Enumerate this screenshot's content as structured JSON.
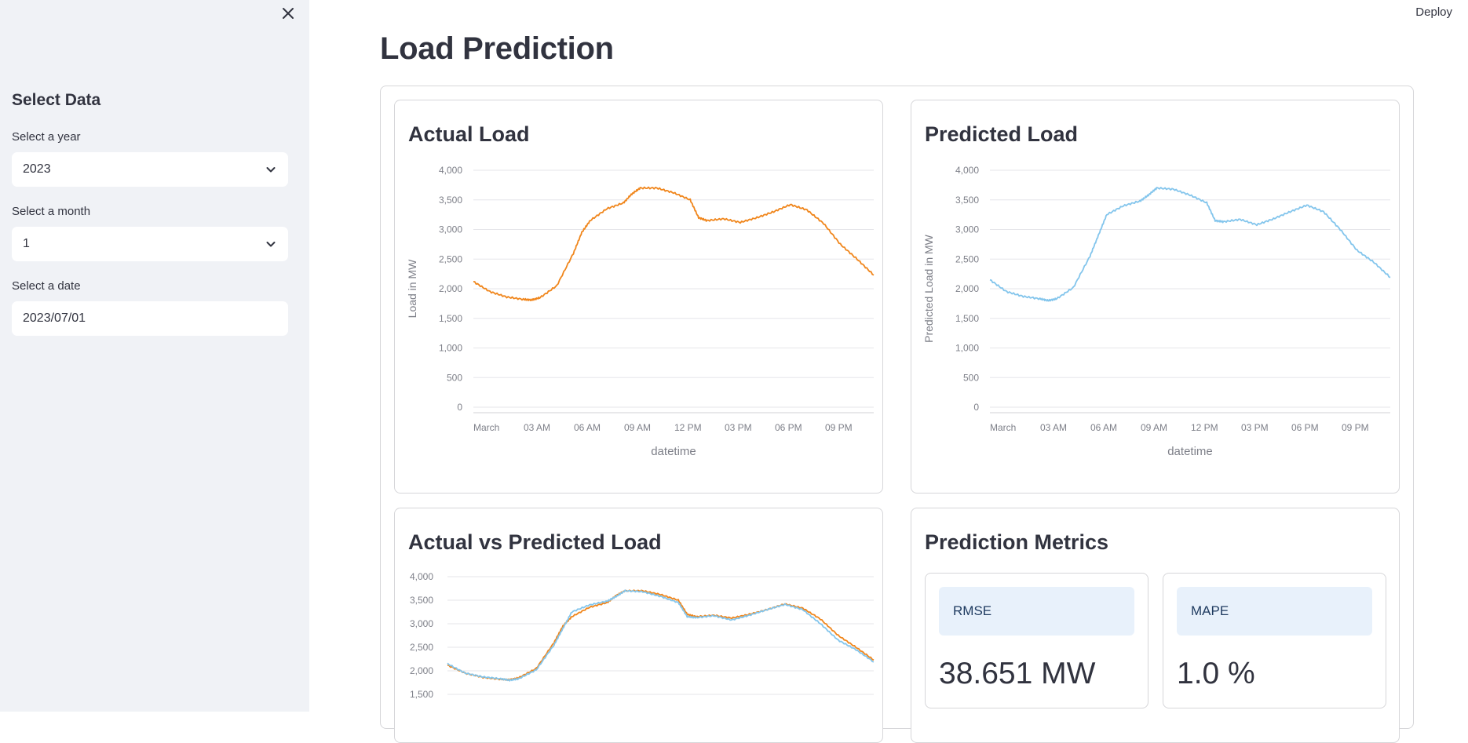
{
  "sidebar": {
    "title": "Select Data",
    "year_label": "Select a year",
    "year_value": "2023",
    "month_label": "Select a month",
    "month_value": "1",
    "date_label": "Select a date",
    "date_value": "2023/07/01"
  },
  "header": {
    "deploy_label": "Deploy"
  },
  "page": {
    "title": "Load Prediction"
  },
  "colors": {
    "actual": "#f0861c",
    "predicted": "#83c5ec"
  },
  "cards": {
    "actual_title": "Actual Load",
    "predicted_title": "Predicted Load",
    "compare_title": "Actual vs Predicted Load",
    "metrics_title": "Prediction Metrics"
  },
  "metrics": [
    {
      "label": "RMSE",
      "value": "38.651 MW"
    },
    {
      "label": "MAPE",
      "value": "1.0 %"
    }
  ],
  "chart_data": [
    {
      "type": "line",
      "title": "Actual Load",
      "xlabel": "datetime",
      "ylabel": "Load in MW",
      "x_ticks": [
        "March",
        "03 AM",
        "06 AM",
        "09 AM",
        "12 PM",
        "03 PM",
        "06 PM",
        "09 PM"
      ],
      "y_ticks": [
        "4,000",
        "3,500",
        "3,000",
        "2,500",
        "2,000",
        "1,500",
        "1,000",
        "500",
        "0"
      ],
      "ylim": [
        0,
        4000
      ],
      "xlim_hours": [
        0,
        24
      ],
      "grid": true,
      "series": [
        {
          "x_hours": [
            0,
            1,
            2,
            3,
            3.5,
            4,
            5,
            6,
            6.5,
            7,
            8,
            9,
            9.5,
            10,
            11,
            12,
            13,
            13.5,
            14,
            15,
            16,
            17,
            18,
            19,
            20,
            21,
            22,
            23,
            24
          ],
          "values": [
            2120,
            1950,
            1860,
            1820,
            1810,
            1850,
            2050,
            2600,
            2950,
            3150,
            3350,
            3450,
            3600,
            3700,
            3700,
            3620,
            3500,
            3200,
            3150,
            3180,
            3120,
            3200,
            3300,
            3420,
            3330,
            3100,
            2750,
            2500,
            2230
          ]
        }
      ]
    },
    {
      "type": "line",
      "title": "Predicted Load",
      "xlabel": "datetime",
      "ylabel": "Predicted Load in MW",
      "x_ticks": [
        "March",
        "03 AM",
        "06 AM",
        "09 AM",
        "12 PM",
        "03 PM",
        "06 PM",
        "09 PM"
      ],
      "y_ticks": [
        "4,000",
        "3,500",
        "3,000",
        "2,500",
        "2,000",
        "1,500",
        "1,000",
        "500",
        "0"
      ],
      "ylim": [
        0,
        4000
      ],
      "xlim_hours": [
        0,
        24
      ],
      "grid": true,
      "series": [
        {
          "x_hours": [
            0,
            1,
            2,
            3,
            3.5,
            4,
            5,
            6,
            6.5,
            7,
            8,
            9,
            9.5,
            10,
            11,
            12,
            13,
            13.5,
            14,
            15,
            16,
            17,
            18,
            19,
            20,
            21,
            22,
            23,
            24
          ],
          "values": [
            2150,
            1950,
            1870,
            1830,
            1800,
            1830,
            2020,
            2550,
            2900,
            3250,
            3400,
            3480,
            3580,
            3700,
            3680,
            3580,
            3450,
            3150,
            3130,
            3170,
            3080,
            3180,
            3300,
            3410,
            3300,
            3000,
            2650,
            2450,
            2190
          ]
        }
      ]
    },
    {
      "type": "line",
      "title": "Actual vs Predicted Load",
      "x_ticks": [],
      "y_ticks": [
        "4,000",
        "3,500",
        "3,000",
        "2,500",
        "2,000",
        "1,500"
      ],
      "ylim": [
        1500,
        4000
      ],
      "xlim_hours": [
        0,
        24
      ],
      "grid": true,
      "series": [
        {
          "x_hours": [
            0,
            1,
            2,
            3,
            3.5,
            4,
            5,
            6,
            6.5,
            7,
            8,
            9,
            9.5,
            10,
            11,
            12,
            13,
            13.5,
            14,
            15,
            16,
            17,
            18,
            19,
            20,
            21,
            22,
            23,
            24
          ],
          "values": [
            2120,
            1950,
            1860,
            1820,
            1810,
            1850,
            2050,
            2600,
            2950,
            3150,
            3350,
            3450,
            3600,
            3700,
            3700,
            3620,
            3500,
            3200,
            3150,
            3180,
            3120,
            3200,
            3300,
            3420,
            3330,
            3100,
            2750,
            2500,
            2230
          ]
        },
        {
          "x_hours": [
            0,
            1,
            2,
            3,
            3.5,
            4,
            5,
            6,
            6.5,
            7,
            8,
            9,
            9.5,
            10,
            11,
            12,
            13,
            13.5,
            14,
            15,
            16,
            17,
            18,
            19,
            20,
            21,
            22,
            23,
            24
          ],
          "values": [
            2150,
            1950,
            1870,
            1830,
            1800,
            1830,
            2020,
            2550,
            2900,
            3250,
            3400,
            3480,
            3580,
            3700,
            3680,
            3580,
            3450,
            3150,
            3130,
            3170,
            3080,
            3180,
            3300,
            3410,
            3300,
            3000,
            2650,
            2450,
            2190
          ]
        }
      ]
    }
  ]
}
